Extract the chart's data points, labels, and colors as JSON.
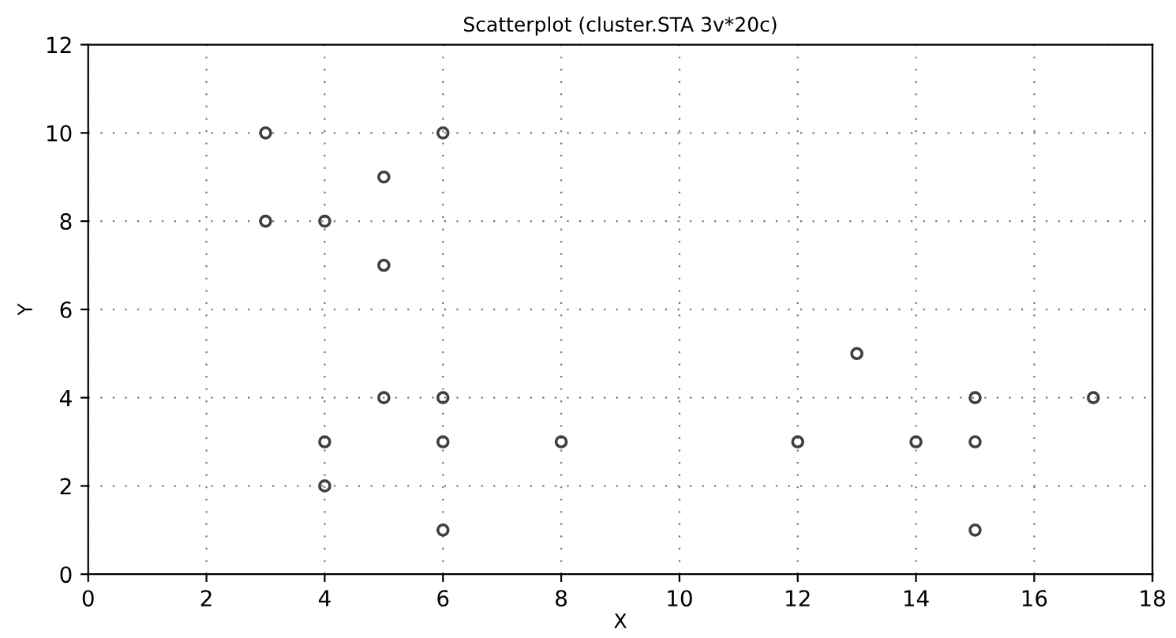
{
  "chart_data": {
    "type": "scatter",
    "title": "Scatterplot (cluster.STA 3v*20c)",
    "xlabel": "X",
    "ylabel": "Y",
    "x": [
      3,
      6,
      5,
      3,
      4,
      5,
      13,
      5,
      6,
      15,
      17,
      4,
      6,
      8,
      12,
      14,
      15,
      4,
      6,
      15
    ],
    "values": [
      10,
      10,
      9,
      8,
      8,
      7,
      5,
      4,
      4,
      4,
      4,
      3,
      3,
      3,
      3,
      3,
      3,
      2,
      1,
      1
    ],
    "color": "#404040",
    "marker": "circle",
    "xlim": [
      0,
      18
    ],
    "ylim": [
      0,
      12
    ],
    "xticks": [
      0,
      2,
      4,
      6,
      8,
      10,
      12,
      14,
      16,
      18
    ],
    "yticks": [
      0,
      2,
      4,
      6,
      8,
      10,
      12
    ],
    "grid": true
  }
}
